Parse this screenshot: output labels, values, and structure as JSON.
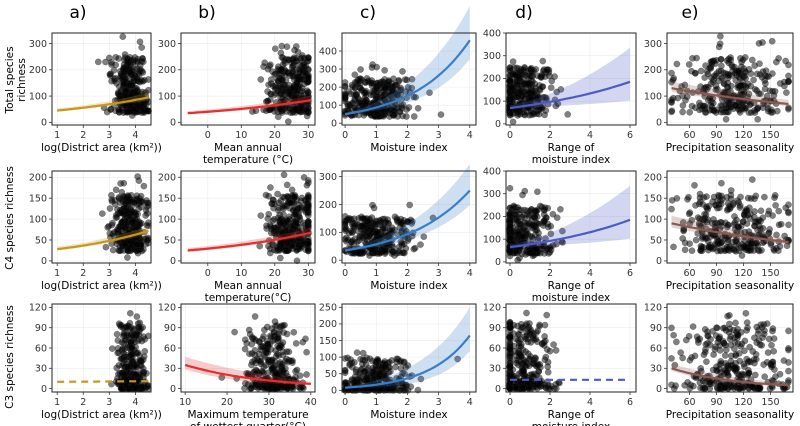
{
  "panel_labels": [
    "a)",
    "b)",
    "c)",
    "d)",
    "e)"
  ],
  "row_labels": [
    {
      "lines": [
        "Total species",
        "richness"
      ]
    },
    {
      "lines": [
        "C4 species richness"
      ]
    },
    {
      "lines": [
        "C3 species richness"
      ]
    }
  ],
  "chart_data": [
    {
      "type": "scatter",
      "row": 0,
      "col": 0,
      "xlabel": "log(District area (km²))",
      "xlim": [
        0.8,
        4.6
      ],
      "xticks": [
        1,
        2,
        3,
        4
      ],
      "ylim": [
        -10,
        340
      ],
      "yticks": [
        0,
        100,
        200,
        300
      ],
      "points": {
        "n": 300,
        "center": 3.8,
        "spread": 0.35,
        "xmin": 1.2,
        "xmax": 4.5,
        "ymax": 330
      },
      "fit": {
        "kind": "exp",
        "from": 1.0,
        "to": 4.5,
        "y0": 45,
        "y1": 95,
        "band": [
          8,
          18
        ],
        "color": "#c8961e",
        "dash": false
      }
    },
    {
      "type": "scatter",
      "row": 0,
      "col": 1,
      "xlabel": [
        "Mean annual",
        "temperature (°C)"
      ],
      "xlim": [
        -8,
        32
      ],
      "xticks": [
        0,
        10,
        20,
        30
      ],
      "ylim": [
        -10,
        340
      ],
      "yticks": [
        0,
        100,
        200,
        300
      ],
      "points": {
        "n": 300,
        "center": 25,
        "spread": 4.0,
        "xmin": -5,
        "xmax": 30,
        "ymax": 330
      },
      "fit": {
        "kind": "exp",
        "from": -6,
        "to": 31,
        "y0": 35,
        "y1": 85,
        "band": [
          8,
          18
        ],
        "color": "#e03030",
        "dash": false
      }
    },
    {
      "type": "scatter",
      "row": 0,
      "col": 2,
      "xlabel": "Moisture index",
      "xlim": [
        -0.1,
        4.2
      ],
      "xticks": [
        0,
        1,
        2,
        3,
        4
      ],
      "ylim": [
        -10,
        500
      ],
      "yticks": [
        0,
        100,
        200,
        300,
        400
      ],
      "points": {
        "n": 300,
        "center": 1.0,
        "spread": 0.6,
        "xmin": 0.0,
        "xmax": 4.0,
        "ymax": 330
      },
      "fit": {
        "kind": "exp",
        "from": 0.0,
        "to": 4.0,
        "y0": 50,
        "y1": 460,
        "band": [
          10,
          190
        ],
        "color": "#3a7ec8",
        "dash": false
      }
    },
    {
      "type": "scatter",
      "row": 0,
      "col": 3,
      "xlabel": [
        "Range of",
        "moisture index"
      ],
      "xlim": [
        -0.2,
        6.3
      ],
      "xticks": [
        0,
        2,
        4,
        6
      ],
      "ylim": [
        -5,
        400
      ],
      "yticks": [
        0,
        100,
        200,
        300,
        400
      ],
      "points": {
        "n": 300,
        "center": 0.6,
        "spread": 0.8,
        "xmin": 0.0,
        "xmax": 6.0,
        "ymax": 330
      },
      "fit": {
        "kind": "exp",
        "from": 0.0,
        "to": 6.0,
        "y0": 70,
        "y1": 185,
        "band": [
          12,
          150
        ],
        "color": "#4f5bc4",
        "dash": false
      }
    },
    {
      "type": "scatter",
      "row": 0,
      "col": 4,
      "xlabel": "Precipitation seasonality",
      "xlim": [
        35,
        175
      ],
      "xticks": [
        60,
        90,
        120,
        150
      ],
      "ylim": [
        -10,
        340
      ],
      "yticks": [
        0,
        100,
        200,
        300
      ],
      "points": {
        "n": 300,
        "center": 110,
        "spread": 30,
        "xmin": 40,
        "xmax": 170,
        "ymax": 330
      },
      "fit": {
        "kind": "exp",
        "from": 40,
        "to": 170,
        "y0": 130,
        "y1": 70,
        "band": [
          25,
          15
        ],
        "color": "#8a5a52",
        "dash": false
      }
    },
    {
      "type": "scatter",
      "row": 1,
      "col": 0,
      "xlabel": "log(District area (km²))",
      "xlim": [
        0.8,
        4.6
      ],
      "xticks": [
        1,
        2,
        3,
        4
      ],
      "ylim": [
        -5,
        215
      ],
      "yticks": [
        0,
        50,
        100,
        150,
        200
      ],
      "points": {
        "n": 300,
        "center": 3.8,
        "spread": 0.35,
        "xmin": 1.2,
        "xmax": 4.5,
        "ymax": 210
      },
      "fit": {
        "kind": "exp",
        "from": 1.0,
        "to": 4.5,
        "y0": 28,
        "y1": 72,
        "band": [
          6,
          12
        ],
        "color": "#c8961e",
        "dash": false
      }
    },
    {
      "type": "scatter",
      "row": 1,
      "col": 1,
      "xlabel": [
        "Mean annual",
        "temperature(°C)"
      ],
      "xlim": [
        -8,
        32
      ],
      "xticks": [
        0,
        10,
        20,
        30
      ],
      "ylim": [
        -5,
        215
      ],
      "yticks": [
        0,
        50,
        100,
        150,
        200
      ],
      "points": {
        "n": 300,
        "center": 25,
        "spread": 4.0,
        "xmin": -5,
        "xmax": 30,
        "ymax": 210
      },
      "fit": {
        "kind": "exp",
        "from": -6,
        "to": 31,
        "y0": 25,
        "y1": 68,
        "band": [
          6,
          12
        ],
        "color": "#e03030",
        "dash": false
      }
    },
    {
      "type": "scatter",
      "row": 1,
      "col": 2,
      "xlabel": "Moisture index",
      "xlim": [
        -0.1,
        4.2
      ],
      "xticks": [
        0,
        1,
        2,
        3,
        4
      ],
      "ylim": [
        -10,
        320
      ],
      "yticks": [
        0,
        100,
        200,
        300
      ],
      "points": {
        "n": 300,
        "center": 1.0,
        "spread": 0.6,
        "xmin": 0.0,
        "xmax": 4.0,
        "ymax": 210
      },
      "fit": {
        "kind": "exp",
        "from": 0.0,
        "to": 4.0,
        "y0": 35,
        "y1": 250,
        "band": [
          8,
          95
        ],
        "color": "#3a7ec8",
        "dash": false
      }
    },
    {
      "type": "scatter",
      "row": 1,
      "col": 3,
      "xlabel": [
        "Range of",
        "moisture index"
      ],
      "xlim": [
        -0.2,
        6.3
      ],
      "xticks": [
        0,
        2,
        4,
        6
      ],
      "ylim": [
        -5,
        400
      ],
      "yticks": [
        0,
        100,
        200,
        300,
        400
      ],
      "points": {
        "n": 300,
        "center": 0.6,
        "spread": 0.8,
        "xmin": 0.0,
        "xmax": 6.0,
        "ymax": 330
      },
      "fit": {
        "kind": "exp",
        "from": 0.0,
        "to": 6.0,
        "y0": 65,
        "y1": 185,
        "band": [
          12,
          150
        ],
        "color": "#4f5bc4",
        "dash": false
      }
    },
    {
      "type": "scatter",
      "row": 1,
      "col": 4,
      "xlabel": "Precipitation seasonality",
      "xlim": [
        35,
        175
      ],
      "xticks": [
        60,
        90,
        120,
        150
      ],
      "ylim": [
        -5,
        215
      ],
      "yticks": [
        0,
        50,
        100,
        150,
        200
      ],
      "points": {
        "n": 300,
        "center": 110,
        "spread": 30,
        "xmin": 40,
        "xmax": 170,
        "ymax": 210
      },
      "fit": {
        "kind": "exp",
        "from": 40,
        "to": 170,
        "y0": 90,
        "y1": 45,
        "band": [
          18,
          10
        ],
        "color": "#8a5a52",
        "dash": false
      }
    },
    {
      "type": "scatter",
      "row": 2,
      "col": 0,
      "xlabel": "log(District area (km²))",
      "xlim": [
        0.8,
        4.6
      ],
      "xticks": [
        1,
        2,
        3,
        4
      ],
      "ylim": [
        -5,
        125
      ],
      "yticks": [
        0,
        30,
        60,
        90,
        120
      ],
      "points": {
        "n": 300,
        "center": 3.8,
        "spread": 0.3,
        "xmin": 1.5,
        "xmax": 4.5,
        "ymax": 115,
        "skew": true
      },
      "fit": {
        "kind": "flat",
        "from": 1.0,
        "to": 4.5,
        "y0": 10,
        "y1": 11,
        "band": [
          0,
          0
        ],
        "color": "#c8961e",
        "dash": true
      }
    },
    {
      "type": "scatter",
      "row": 2,
      "col": 1,
      "xlabel": [
        "Maximum temperature",
        "of wettest quarter(°C)"
      ],
      "xlim": [
        9,
        41
      ],
      "xticks": [
        10,
        20,
        30,
        40
      ],
      "ylim": [
        -5,
        125
      ],
      "yticks": [
        0,
        30,
        60,
        90,
        120
      ],
      "points": {
        "n": 300,
        "center": 31,
        "spread": 3.5,
        "xmin": 18,
        "xmax": 39,
        "ymax": 115,
        "skew": true
      },
      "fit": {
        "kind": "exp",
        "from": 10,
        "to": 40,
        "y0": 35,
        "y1": 7,
        "band": [
          12,
          3
        ],
        "color": "#e03030",
        "dash": false
      }
    },
    {
      "type": "scatter",
      "row": 2,
      "col": 2,
      "xlabel": "Moisture index",
      "xlim": [
        -0.1,
        4.2
      ],
      "xticks": [
        0,
        1,
        2,
        3,
        4
      ],
      "ylim": [
        -5,
        260
      ],
      "yticks": [
        0,
        50,
        100,
        150,
        200,
        250
      ],
      "points": {
        "n": 300,
        "center": 1.0,
        "spread": 0.6,
        "xmin": 0.0,
        "xmax": 4.0,
        "ymax": 115,
        "skew": true
      },
      "fit": {
        "kind": "exp",
        "from": 0.0,
        "to": 4.0,
        "y0": 8,
        "y1": 165,
        "band": [
          4,
          85
        ],
        "color": "#3a7ec8",
        "dash": false
      }
    },
    {
      "type": "scatter",
      "row": 2,
      "col": 3,
      "xlabel": [
        "Range of",
        "moisture index"
      ],
      "xlim": [
        -0.2,
        6.3
      ],
      "xticks": [
        0,
        2,
        4,
        6
      ],
      "ylim": [
        -5,
        125
      ],
      "yticks": [
        0,
        30,
        60,
        90,
        120
      ],
      "points": {
        "n": 300,
        "center": 0.6,
        "spread": 0.8,
        "xmin": 0.0,
        "xmax": 6.0,
        "ymax": 115,
        "skew": true
      },
      "fit": {
        "kind": "flat",
        "from": 0.0,
        "to": 6.0,
        "y0": 13,
        "y1": 13,
        "band": [
          0,
          0
        ],
        "color": "#4f5bc4",
        "dash": true
      }
    },
    {
      "type": "scatter",
      "row": 2,
      "col": 4,
      "xlabel": "Precipitation seasonality",
      "xlim": [
        35,
        175
      ],
      "xticks": [
        60,
        90,
        120,
        150
      ],
      "ylim": [
        -5,
        125
      ],
      "yticks": [
        0,
        30,
        60,
        90,
        120
      ],
      "points": {
        "n": 300,
        "center": 110,
        "spread": 30,
        "xmin": 40,
        "xmax": 170,
        "ymax": 115,
        "skew": true
      },
      "fit": {
        "kind": "exp",
        "from": 40,
        "to": 170,
        "y0": 30,
        "y1": 5,
        "band": [
          7,
          3
        ],
        "color": "#8a5a52",
        "dash": false
      }
    }
  ]
}
